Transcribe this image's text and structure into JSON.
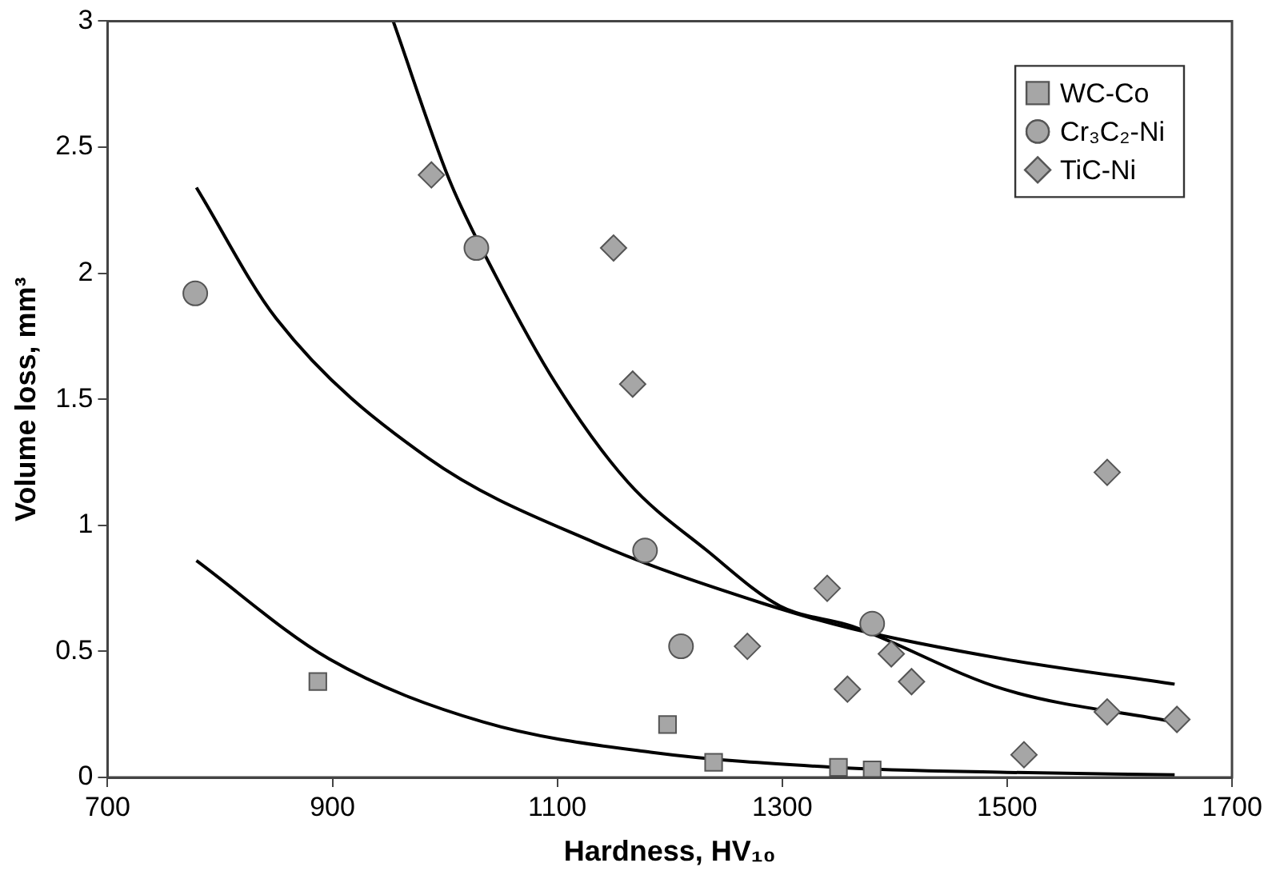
{
  "chart_data": {
    "type": "scatter",
    "xlabel": "Hardness, HV₁₀",
    "ylabel": "Volume loss, mm³",
    "xlim": [
      700,
      1700
    ],
    "xticks": [
      700,
      900,
      1100,
      1300,
      1500,
      1700
    ],
    "ylim": [
      0,
      3
    ],
    "yticks": [
      0,
      {
        "value": 0.5,
        "label": "0.5"
      },
      1,
      {
        "value": 1.5,
        "label": "1.5"
      },
      2,
      {
        "value": 2.5,
        "label": "2.5"
      },
      3
    ],
    "grid": false,
    "legend": "top right",
    "series": [
      {
        "name": "WC-Co",
        "color": "#a6a6a6",
        "marker": "square",
        "x": [
          887,
          1198,
          1239,
          1350,
          1380
        ],
        "values": [
          0.38,
          0.21,
          0.06,
          0.04,
          0.03
        ]
      },
      {
        "name": "Cr₃C₂-Ni",
        "color": "#a6a6a6",
        "marker": "circle",
        "x": [
          778,
          1028,
          1178,
          1210,
          1380
        ],
        "values": [
          1.92,
          2.1,
          0.9,
          0.52,
          0.61
        ]
      },
      {
        "name": "TiC-Ni",
        "color": "#a6a6a6",
        "marker": "diamond",
        "x": [
          988,
          1150,
          1167,
          1269,
          1340,
          1358,
          1397,
          1415,
          1515,
          1589,
          1589,
          1651
        ],
        "values": [
          2.39,
          2.1,
          1.56,
          0.52,
          0.75,
          0.35,
          0.49,
          0.38,
          0.09,
          1.21,
          0.26,
          0.23
        ]
      },
      {
        "type": "line",
        "color": "#000000",
        "marker": "none",
        "x": [
          779,
          897,
          1034,
          1183,
          1347,
          1500,
          1649
        ],
        "values": [
          0.86,
          0.47,
          0.22,
          0.1,
          0.04,
          0.02,
          0.01
        ]
      },
      {
        "type": "line",
        "color": "#000000",
        "marker": "none",
        "x": [
          779,
          850,
          984,
          1134,
          1283,
          1362,
          1497,
          1649
        ],
        "values": [
          2.34,
          1.82,
          1.27,
          0.93,
          0.69,
          0.59,
          0.47,
          0.37
        ]
      },
      {
        "type": "line",
        "color": "#000000",
        "marker": "none",
        "x": [
          954,
          1004,
          1044,
          1099,
          1163,
          1233,
          1298,
          1362,
          1497,
          1649
        ],
        "values": [
          3,
          2.37,
          2,
          1.56,
          1.17,
          0.9,
          0.68,
          0.6,
          0.35,
          0.22
        ]
      }
    ]
  }
}
